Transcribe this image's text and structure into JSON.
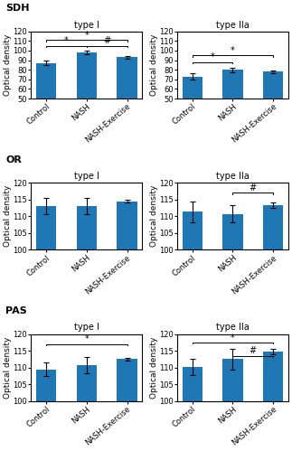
{
  "chart_data": [
    {
      "type": "bar",
      "subtitle": "SDH",
      "title": "type I",
      "ylabel": "Optical density",
      "categories": [
        "Control",
        "NASH",
        "NASH-Exercise"
      ],
      "values": [
        87,
        98,
        93
      ],
      "errors": [
        2.5,
        2.0,
        1.5
      ],
      "ylim": [
        50,
        120
      ],
      "yticks": [
        50,
        60,
        70,
        80,
        90,
        100,
        110,
        120
      ],
      "annotations": [
        {
          "from": "Control",
          "to": "NASH",
          "y": 105,
          "text": "*"
        },
        {
          "from": "Control",
          "to": "NASH-Exercise",
          "y": 111,
          "text": "*"
        },
        {
          "from": "NASH",
          "to": "NASH-Exercise",
          "y": 105,
          "text": "#"
        }
      ]
    },
    {
      "type": "bar",
      "title": "type IIa",
      "ylabel": "Optical density",
      "categories": [
        "Control",
        "NASH",
        "NASH-Exercise"
      ],
      "values": [
        73,
        80,
        78
      ],
      "errors": [
        3.0,
        2.5,
        1.5
      ],
      "ylim": [
        50,
        120
      ],
      "yticks": [
        50,
        60,
        70,
        80,
        90,
        100,
        110,
        120
      ],
      "annotations": [
        {
          "from": "Control",
          "to": "NASH",
          "y": 88,
          "text": "*"
        },
        {
          "from": "Control",
          "to": "NASH-Exercise",
          "y": 95,
          "text": "*"
        }
      ]
    },
    {
      "type": "bar",
      "subtitle": "OR",
      "title": "type I",
      "ylabel": "Optical density",
      "categories": [
        "Control",
        "NASH",
        "NASH-Exercise"
      ],
      "values": [
        113,
        113,
        114.5
      ],
      "errors": [
        2.5,
        2.5,
        0.5
      ],
      "ylim": [
        100,
        120
      ],
      "yticks": [
        100,
        105,
        110,
        115,
        120
      ],
      "annotations": []
    },
    {
      "type": "bar",
      "title": "type IIa",
      "ylabel": "Optical density",
      "categories": [
        "Control",
        "NASH",
        "NASH-Exercise"
      ],
      "values": [
        111.3,
        110.7,
        113.3
      ],
      "errors": [
        3.0,
        2.5,
        0.8
      ],
      "ylim": [
        100,
        120
      ],
      "yticks": [
        100,
        105,
        110,
        115,
        120
      ],
      "annotations": [
        {
          "from": "NASH",
          "to": "NASH-Exercise",
          "y": 117,
          "text": "#"
        }
      ]
    },
    {
      "type": "bar",
      "subtitle": "PAS",
      "title": "type I",
      "ylabel": "Optical density",
      "categories": [
        "Control",
        "NASH",
        "NASH-Exercise"
      ],
      "values": [
        109.5,
        110.7,
        112.5
      ],
      "errors": [
        2.0,
        2.5,
        0.5
      ],
      "ylim": [
        100,
        120
      ],
      "yticks": [
        100,
        105,
        110,
        115,
        120
      ],
      "annotations": [
        {
          "from": "Control",
          "to": "NASH-Exercise",
          "y": 117,
          "text": "*"
        }
      ]
    },
    {
      "type": "bar",
      "title": "type IIa",
      "ylabel": "Optical density",
      "categories": [
        "Control",
        "NASH",
        "NASH-Exercise"
      ],
      "values": [
        110.2,
        112.5,
        114.8
      ],
      "errors": [
        2.5,
        3.0,
        0.8
      ],
      "ylim": [
        100,
        120
      ],
      "yticks": [
        100,
        105,
        110,
        115,
        120
      ],
      "annotations": [
        {
          "from": "Control",
          "to": "NASH-Exercise",
          "y": 117.5,
          "text": "*"
        },
        {
          "from": "NASH",
          "to": "NASH-Exercise",
          "y": 113.5,
          "text": "#"
        }
      ]
    }
  ]
}
